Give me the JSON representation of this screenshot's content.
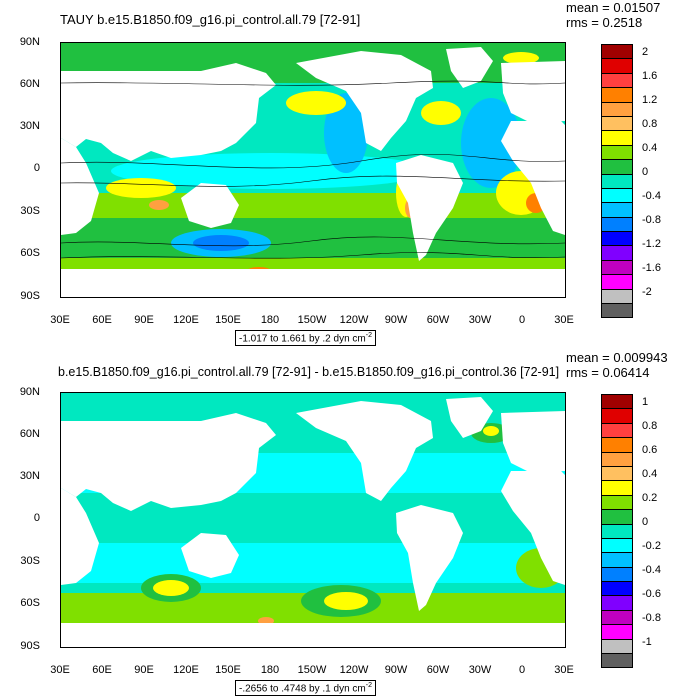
{
  "colors": {
    "palette": [
      "#a00000",
      "#e00000",
      "#ff4040",
      "#ff8000",
      "#ffa040",
      "#ffc060",
      "#ffff00",
      "#80e000",
      "#20c040",
      "#00e8c0",
      "#00ffff",
      "#00c0ff",
      "#0080ff",
      "#0000ff",
      "#8000ff",
      "#c000c0",
      "#ff00ff",
      "#c0c0c0",
      "#606060"
    ],
    "land": "#ffffff",
    "ocean_base": "#00e8c0"
  },
  "panels": [
    {
      "title": "TAUY b.e15.B1850.f09_g16.pi_control.all.79 [72-91]",
      "mean_text": "mean = 0.01507",
      "rms_text": "rms = 0.2518",
      "range_text": "-1.017 to 1.661 by .2 dyn cm",
      "range_sup": "-2",
      "colorbar_labels": [
        "2",
        "1.6",
        "1.2",
        "0.8",
        "0.4",
        "0",
        "-0.4",
        "-0.8",
        "-1.2",
        "-1.6",
        "-2"
      ],
      "lat_labels": [
        "90N",
        "60N",
        "30N",
        "0",
        "30S",
        "60S",
        "90S"
      ],
      "lon_labels": [
        "30E",
        "60E",
        "90E",
        "120E",
        "150E",
        "180",
        "150W",
        "120W",
        "90W",
        "60W",
        "30W",
        "0",
        "30E"
      ]
    },
    {
      "title": "b.e15.B1850.f09_g16.pi_control.all.79 [72-91] - b.e15.B1850.f09_g16.pi_control.36 [72-91]",
      "mean_text": "mean = 0.009943",
      "rms_text": "rms = 0.06414",
      "range_text": "-.2656 to .4748 by .1 dyn cm",
      "range_sup": "-2",
      "colorbar_labels": [
        "1",
        "0.8",
        "0.6",
        "0.4",
        "0.2",
        "0",
        "-0.2",
        "-0.4",
        "-0.6",
        "-0.8",
        "-1"
      ],
      "lat_labels": [
        "90N",
        "60N",
        "30N",
        "0",
        "30S",
        "60S",
        "90S"
      ],
      "lon_labels": [
        "30E",
        "60E",
        "90E",
        "120E",
        "150E",
        "180",
        "150W",
        "120W",
        "90W",
        "60W",
        "30W",
        "0",
        "30E"
      ]
    }
  ]
}
